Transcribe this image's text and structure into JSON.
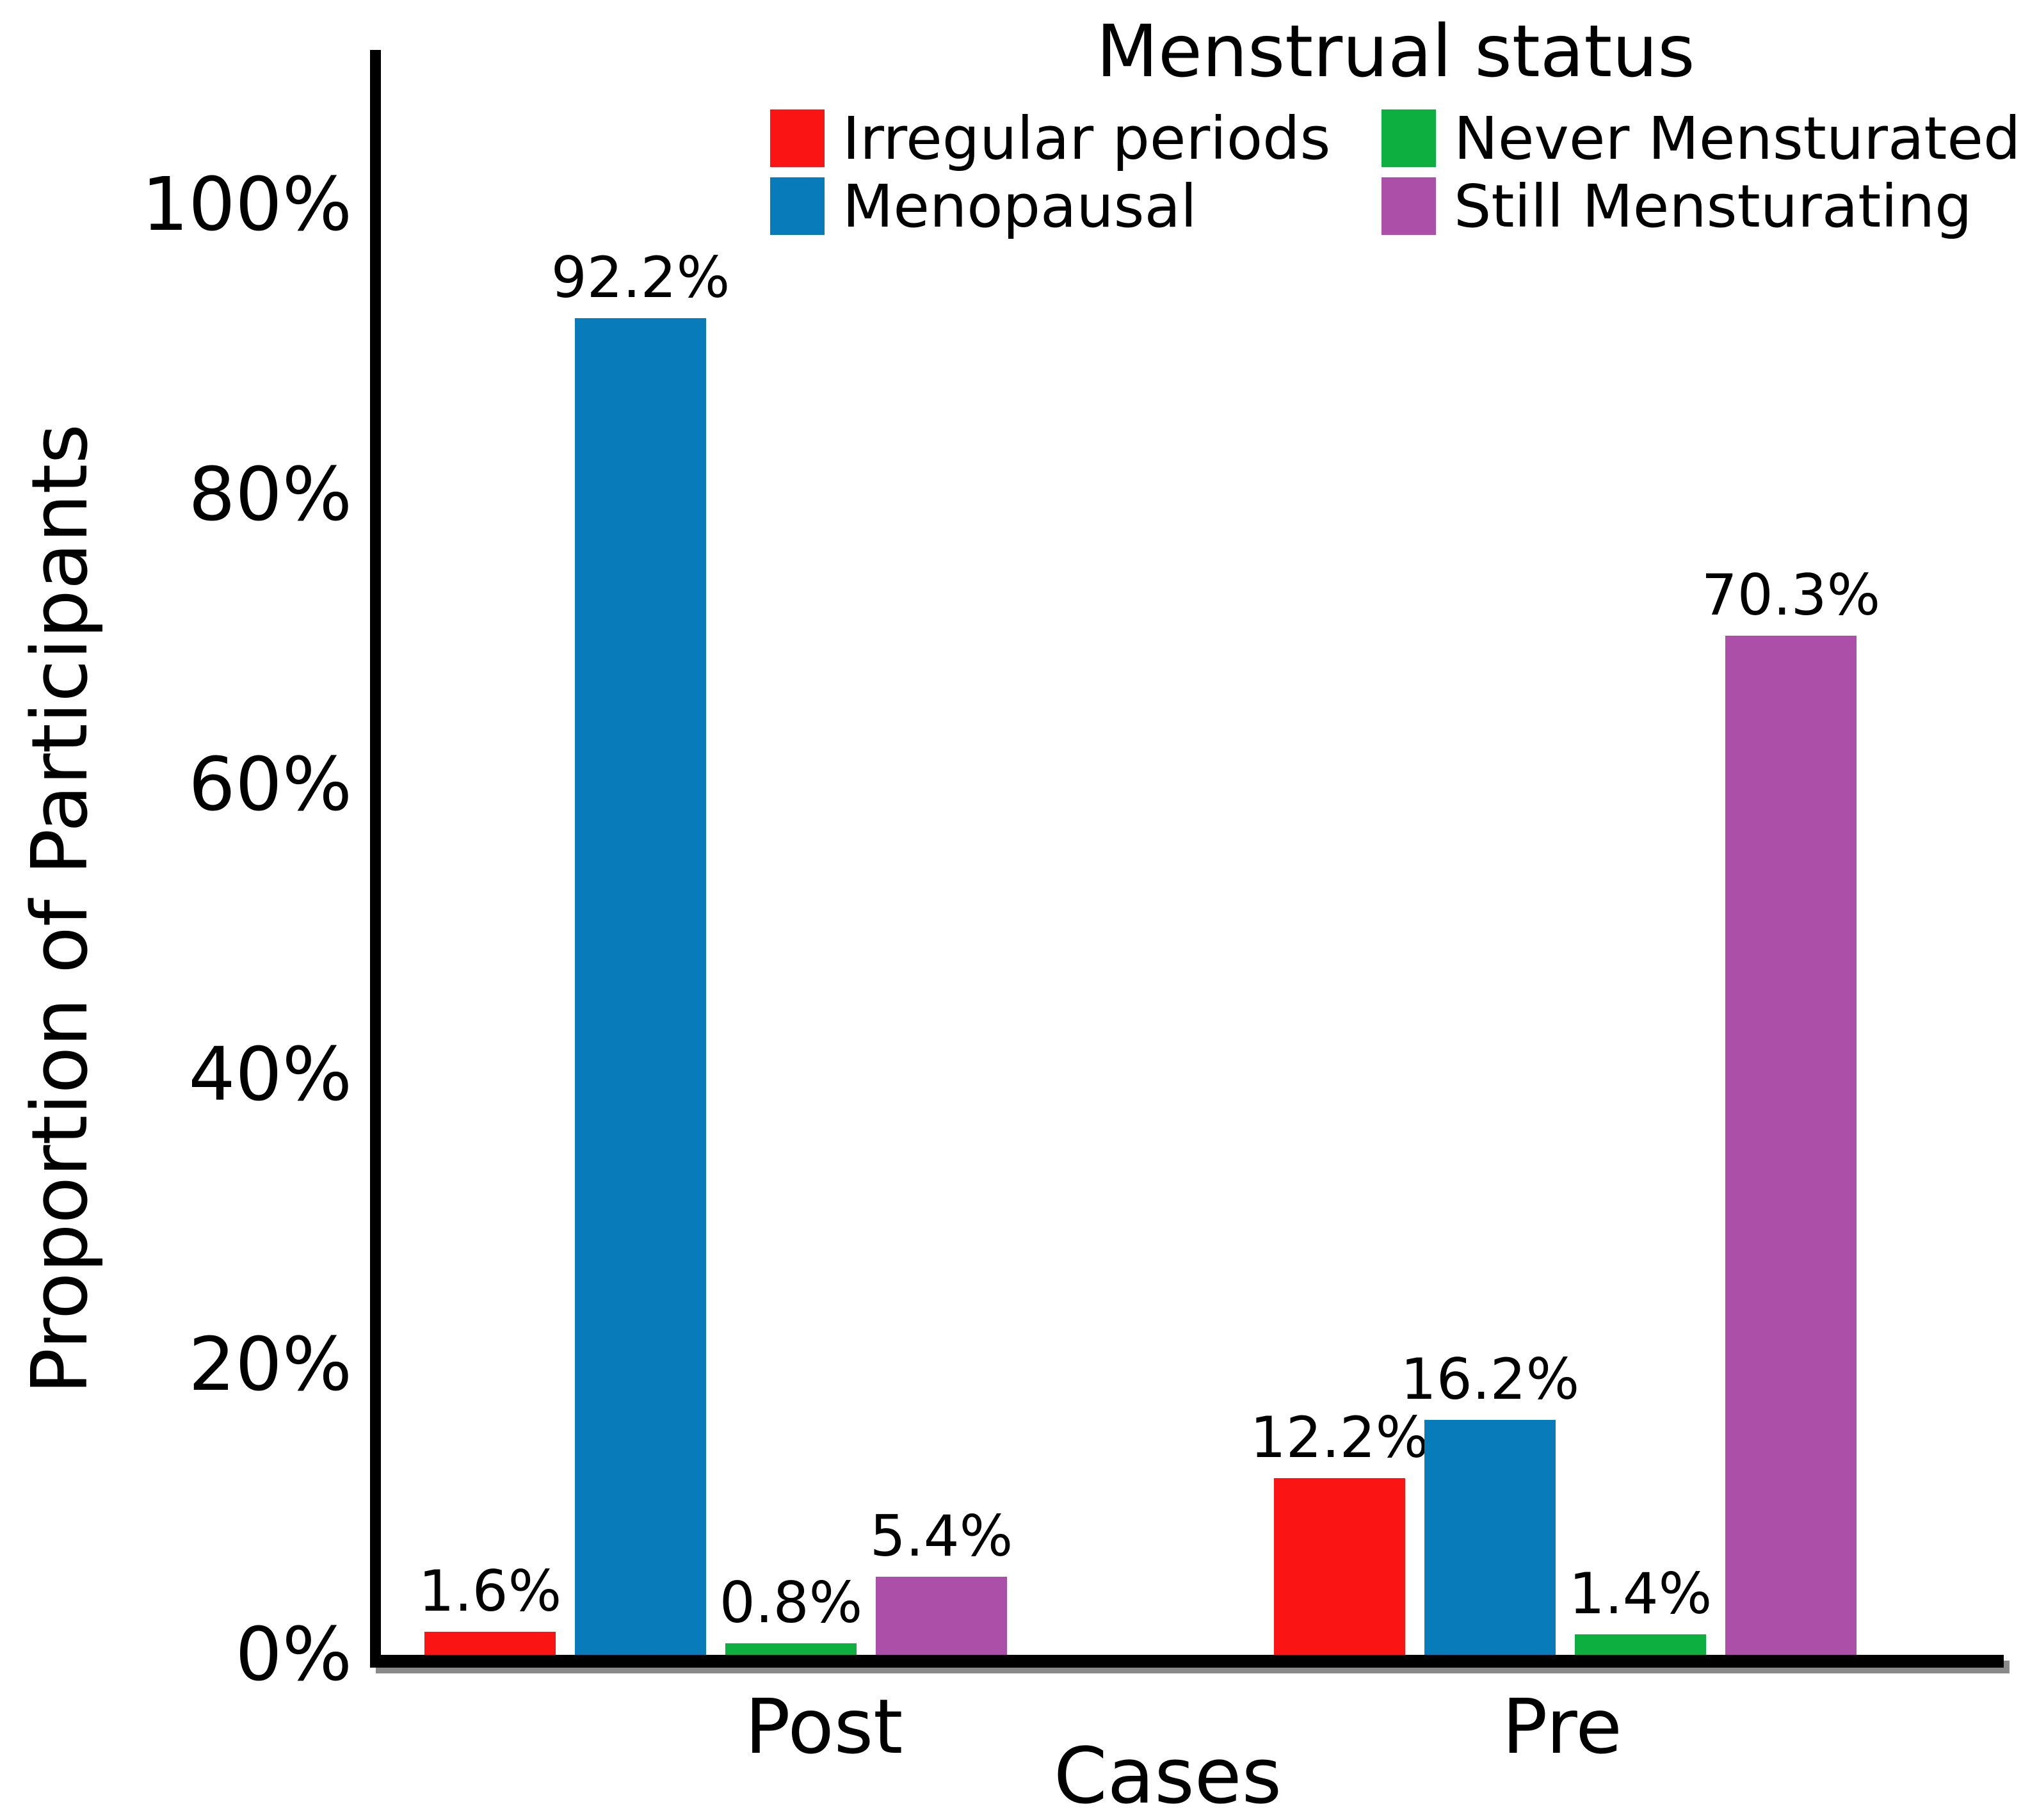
{
  "chart_data": {
    "type": "bar",
    "legend_title": "Menstrual status",
    "xlabel": "Cases",
    "ylabel": "Proportion of Participants",
    "categories": [
      "Post",
      "Pre"
    ],
    "series": [
      {
        "name": "Irregular periods",
        "color": "#FA1414",
        "values": [
          1.6,
          12.2
        ],
        "bar_labels": [
          "1.6%",
          "12.2%"
        ]
      },
      {
        "name": "Menopausal",
        "color": "#087CBA",
        "values": [
          92.2,
          16.2
        ],
        "bar_labels": [
          "92.2%",
          "16.2%"
        ]
      },
      {
        "name": "Never Mensturated",
        "color": "#0CAF40",
        "values": [
          0.8,
          1.4
        ],
        "bar_labels": [
          "0.8%",
          "1.4%"
        ]
      },
      {
        "name": "Still Mensturating",
        "color": "#AB4FA8",
        "values": [
          5.4,
          70.3
        ],
        "bar_labels": [
          "5.4%",
          "70.3%"
        ]
      }
    ],
    "legend_order": [
      "Irregular periods",
      "Never Mensturated",
      "Menopausal",
      "Still Mensturating"
    ],
    "y_ticks": [
      "0%",
      "20%",
      "40%",
      "60%",
      "80%",
      "100%"
    ],
    "ylim": [
      0,
      100
    ],
    "grid": false,
    "legend_position": "top-right",
    "bar_label_unit": "%"
  }
}
